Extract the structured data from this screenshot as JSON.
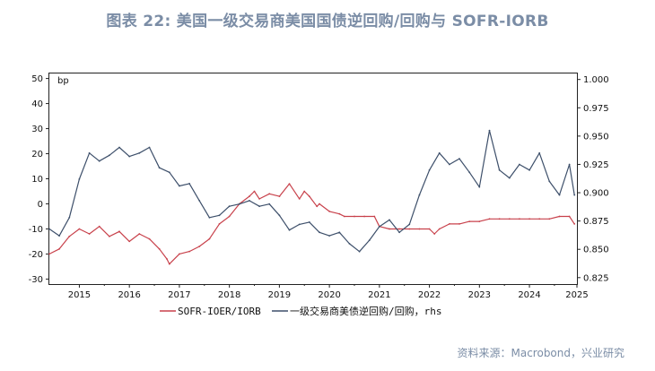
{
  "title": "图表 22: 美国一级交易商美国国债逆回购/回购与 SOFR-IORB",
  "source": "资料来源：Macrobond，兴业研究",
  "chart_data": {
    "type": "line",
    "x_ticks": [
      "2015",
      "2016",
      "2017",
      "2018",
      "2019",
      "2020",
      "2021",
      "2022",
      "2023",
      "2024",
      "2025"
    ],
    "x_range": [
      2014.4,
      2024.95
    ],
    "left_axis": {
      "unit_label": "bp",
      "ylim": [
        -32,
        52
      ],
      "ticks": [
        "50",
        "40",
        "30",
        "20",
        "10",
        "0",
        "-10",
        "-20",
        "-30"
      ]
    },
    "right_axis": {
      "ylim": [
        0.8193,
        1.0053
      ],
      "ticks": [
        "1.000",
        "0.975",
        "0.950",
        "0.925",
        "0.900",
        "0.875",
        "0.850",
        "0.825"
      ]
    },
    "legend_position": "bottom",
    "series": [
      {
        "name": "SOFR-IOER/IORB",
        "axis": "left",
        "color": "#c8414b",
        "x": [
          2014.4,
          2014.6,
          2014.8,
          2015.0,
          2015.2,
          2015.4,
          2015.6,
          2015.8,
          2016.0,
          2016.2,
          2016.4,
          2016.6,
          2016.75,
          2016.8,
          2017.0,
          2017.2,
          2017.4,
          2017.6,
          2017.8,
          2018.0,
          2018.2,
          2018.4,
          2018.5,
          2018.6,
          2018.8,
          2019.0,
          2019.2,
          2019.4,
          2019.5,
          2019.6,
          2019.75,
          2019.8,
          2020.0,
          2020.2,
          2020.3,
          2020.5,
          2020.7,
          2020.9,
          2021.0,
          2021.2,
          2021.4,
          2021.6,
          2021.8,
          2022.0,
          2022.1,
          2022.2,
          2022.4,
          2022.6,
          2022.8,
          2023.0,
          2023.2,
          2023.4,
          2023.6,
          2023.8,
          2024.0,
          2024.2,
          2024.4,
          2024.6,
          2024.8,
          2024.9
        ],
        "y": [
          -20,
          -18,
          -13,
          -10,
          -12,
          -9,
          -13,
          -11,
          -15,
          -12,
          -14,
          -18,
          -22,
          -24,
          -20,
          -19,
          -17,
          -14,
          -8,
          -5,
          0,
          3,
          5,
          2,
          4,
          3,
          8,
          2,
          5,
          3,
          -1,
          0,
          -3,
          -4,
          -5,
          -5,
          -5,
          -5,
          -9,
          -10,
          -10,
          -10,
          -10,
          -10,
          -12,
          -10,
          -8,
          -8,
          -7,
          -7,
          -6,
          -6,
          -6,
          -6,
          -6,
          -6,
          -6,
          -5,
          -5,
          -8
        ]
      },
      {
        "name": "一级交易商美债逆回购/回购，rhs",
        "axis": "right",
        "color": "#3d4f6a",
        "x": [
          2014.4,
          2014.6,
          2014.8,
          2015.0,
          2015.2,
          2015.4,
          2015.6,
          2015.8,
          2016.0,
          2016.2,
          2016.4,
          2016.6,
          2016.8,
          2017.0,
          2017.2,
          2017.4,
          2017.6,
          2017.8,
          2018.0,
          2018.2,
          2018.4,
          2018.6,
          2018.8,
          2019.0,
          2019.2,
          2019.4,
          2019.6,
          2019.8,
          2020.0,
          2020.2,
          2020.4,
          2020.6,
          2020.8,
          2021.0,
          2021.2,
          2021.4,
          2021.6,
          2021.8,
          2022.0,
          2022.2,
          2022.4,
          2022.6,
          2022.8,
          2023.0,
          2023.2,
          2023.4,
          2023.6,
          2023.8,
          2024.0,
          2024.2,
          2024.4,
          2024.6,
          2024.8,
          2024.9
        ],
        "y": [
          0.868,
          0.862,
          0.878,
          0.912,
          0.935,
          0.928,
          0.933,
          0.94,
          0.932,
          0.935,
          0.94,
          0.922,
          0.918,
          0.906,
          0.908,
          0.893,
          0.878,
          0.88,
          0.888,
          0.89,
          0.893,
          0.888,
          0.89,
          0.88,
          0.867,
          0.872,
          0.874,
          0.865,
          0.862,
          0.865,
          0.855,
          0.848,
          0.858,
          0.87,
          0.876,
          0.865,
          0.872,
          0.898,
          0.92,
          0.935,
          0.925,
          0.93,
          0.918,
          0.905,
          0.955,
          0.92,
          0.913,
          0.925,
          0.92,
          0.935,
          0.91,
          0.898,
          0.925,
          0.898
        ]
      }
    ]
  }
}
